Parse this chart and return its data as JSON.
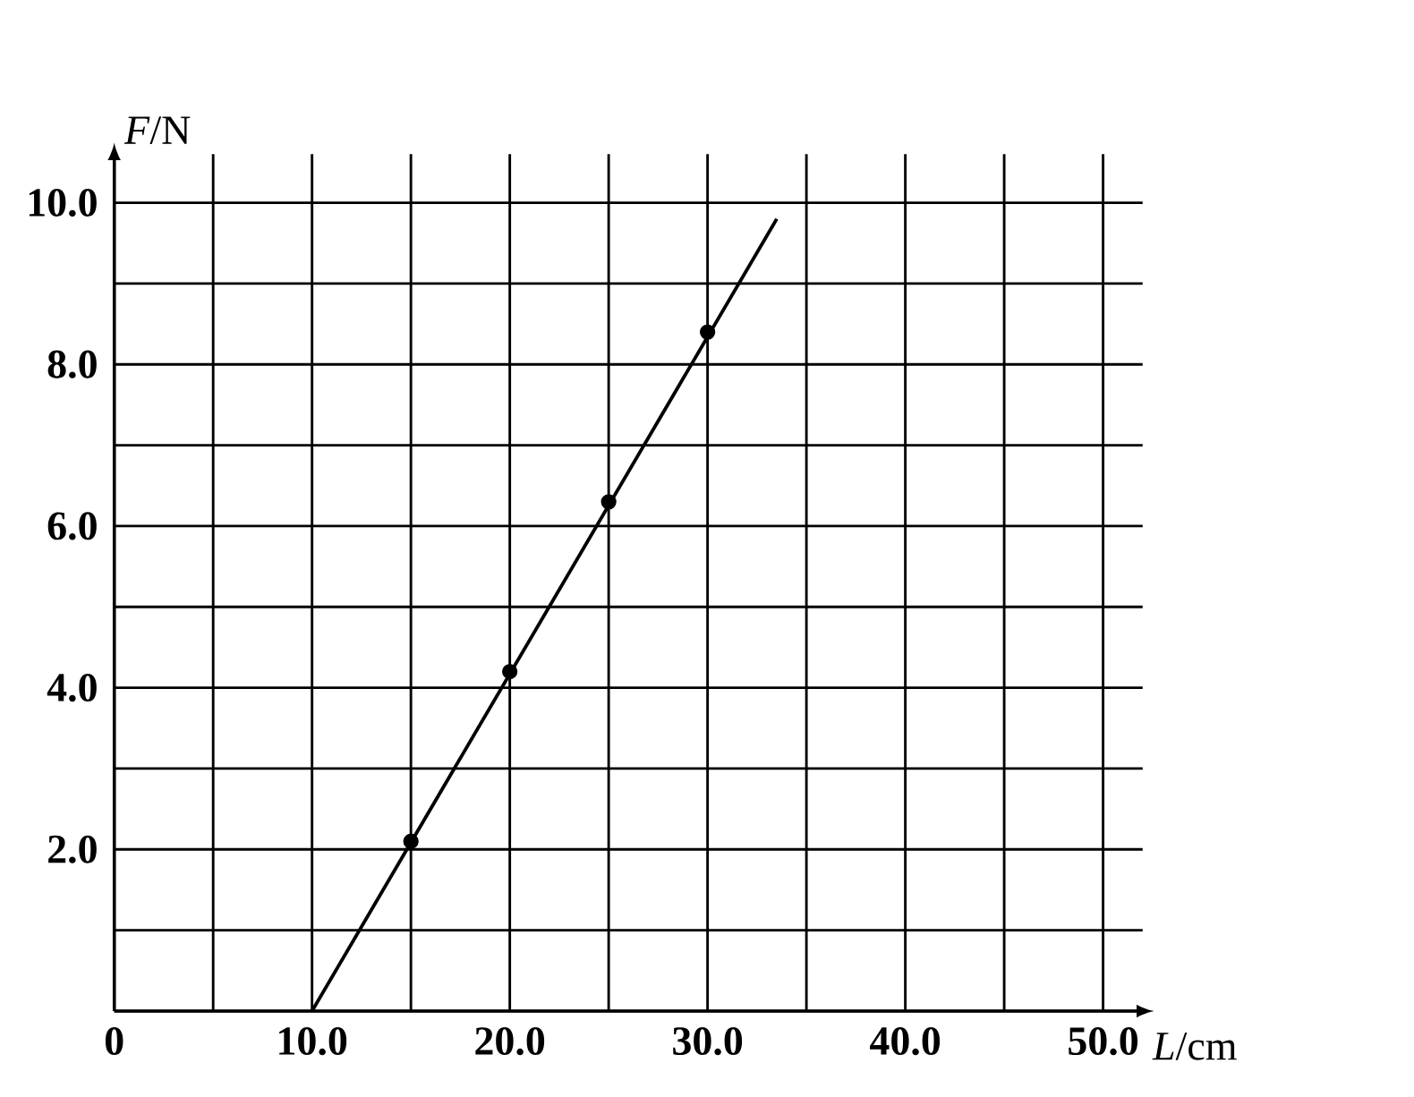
{
  "chart_data": {
    "type": "scatter",
    "xlabel": "*L*/cm",
    "ylabel": "*F*/N",
    "xlim": [
      0,
      50
    ],
    "ylim": [
      0,
      10
    ],
    "xticks": [
      0,
      {
        "value": 5,
        "label": null
      },
      {
        "value": 10,
        "label": "10.0"
      },
      {
        "value": 15,
        "label": null
      },
      {
        "value": 20,
        "label": "20.0"
      },
      {
        "value": 25,
        "label": null
      },
      {
        "value": 30,
        "label": "30.0"
      },
      {
        "value": 35,
        "label": null
      },
      {
        "value": 40,
        "label": "40.0"
      },
      {
        "value": 45,
        "label": null
      },
      {
        "value": 50,
        "label": "50.0"
      }
    ],
    "yticks": [
      {
        "value": 0,
        "label": null
      },
      {
        "value": 1,
        "label": null
      },
      {
        "value": 2,
        "label": "2.0"
      },
      {
        "value": 3,
        "label": null
      },
      {
        "value": 4,
        "label": "4.0"
      },
      {
        "value": 5,
        "label": null
      },
      {
        "value": 6,
        "label": "6.0"
      },
      {
        "value": 7,
        "label": null
      },
      {
        "value": 8,
        "label": "8.0"
      },
      {
        "value": 9,
        "label": null
      },
      {
        "value": 10,
        "label": "10.0"
      }
    ],
    "grid": true,
    "series": [
      {
        "x": [
          15,
          20,
          25,
          30
        ],
        "values": [
          2.1,
          4.2,
          6.3,
          8.4
        ],
        "color": "#000000",
        "marker": "circle"
      },
      {
        "type": "line",
        "x": [
          10,
          33.5
        ],
        "values": [
          0,
          9.8
        ],
        "color": "#000000",
        "marker": "none",
        "line_style": "solid"
      }
    ]
  }
}
